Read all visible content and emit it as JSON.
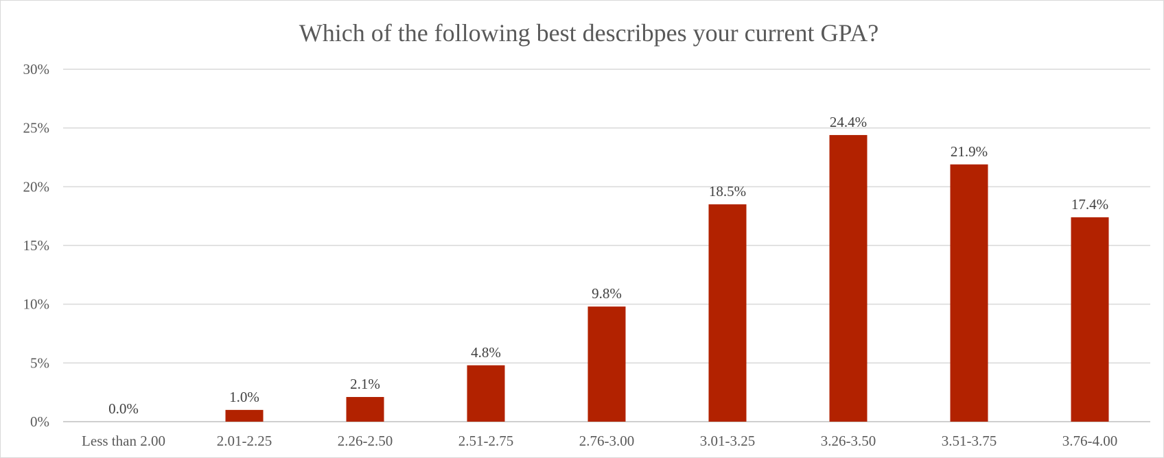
{
  "chart_data": {
    "type": "bar",
    "title": "Which of the following best describpes your current GPA?",
    "xlabel": "",
    "ylabel": "",
    "categories": [
      "Less than 2.00",
      "2.01-2.25",
      "2.26-2.50",
      "2.51-2.75",
      "2.76-3.00",
      "3.01-3.25",
      "3.26-3.50",
      "3.51-3.75",
      "3.76-4.00"
    ],
    "values": [
      0.0,
      1.0,
      2.1,
      4.8,
      9.8,
      18.5,
      24.4,
      21.9,
      17.4
    ],
    "data_labels": [
      "0.0%",
      "1.0%",
      "2.1%",
      "4.8%",
      "9.8%",
      "18.5%",
      "24.4%",
      "21.9%",
      "17.4%"
    ],
    "ylim": [
      0,
      30
    ],
    "yticks": [
      "0%",
      "5%",
      "10%",
      "15%",
      "20%",
      "25%",
      "30%"
    ],
    "grid": true,
    "legend": "none",
    "bar_color": "#b22200"
  }
}
